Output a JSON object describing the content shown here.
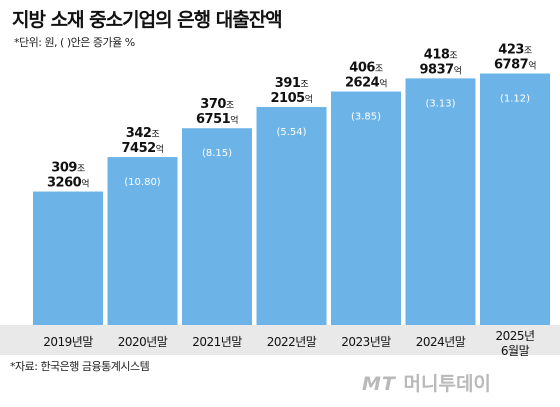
{
  "header": {
    "title": "지방 소재 중소기업의 은행 대출잔액",
    "unit_note": "*단위: 원, ( )안은 증가율 %"
  },
  "footer": {
    "source": "*자료: 한국은행 금융통계시스템",
    "logo_mt": "MT",
    "logo_ko": "머니투데이"
  },
  "colors": {
    "bar": "#6cb4e8",
    "axis_band": "#e9e9e9",
    "growth_text": "#ffffff",
    "value_text": "#111111"
  },
  "chart_data": {
    "type": "bar",
    "title": "지방 소재 중소기업의 은행 대출잔액",
    "categories": [
      "2019년말",
      "2020년말",
      "2021년말",
      "2022년말",
      "2023년말",
      "2024년말",
      "2025년\n6월말"
    ],
    "values": [
      309.326,
      342.7452,
      370.6751,
      391.2105,
      406.2624,
      418.9837,
      423.6787
    ],
    "value_labels": [
      {
        "jo": "309",
        "eok": "3260"
      },
      {
        "jo": "342",
        "eok": "7452"
      },
      {
        "jo": "370",
        "eok": "6751"
      },
      {
        "jo": "391",
        "eok": "2105"
      },
      {
        "jo": "406",
        "eok": "2624"
      },
      {
        "jo": "418",
        "eok": "9837"
      },
      {
        "jo": "423",
        "eok": "6787"
      }
    ],
    "unit_jo": "조",
    "unit_eok": "억",
    "growth_rates": [
      "",
      "(10.80)",
      "(8.15)",
      "(5.54)",
      "(3.85)",
      "(3.13)",
      "(1.12)"
    ],
    "ylim": [
      180,
      430
    ],
    "grid": false,
    "legend": "none"
  }
}
